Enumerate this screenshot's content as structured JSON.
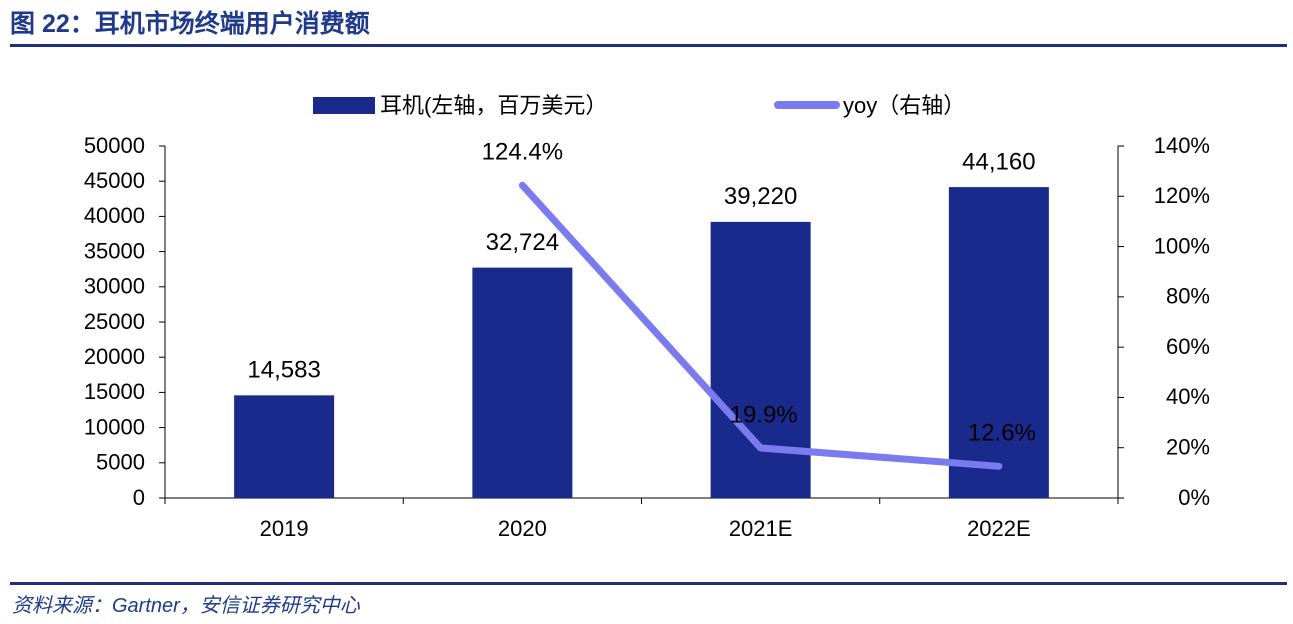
{
  "header": {
    "figure_label": "图 ",
    "figure_num": "22",
    "title": "：耳机市场终端用户消费额"
  },
  "footer": {
    "source": "资料来源：Gartner，安信证券研究中心"
  },
  "colors": {
    "bar": "#1a2a8c",
    "line": "#7b7bf0",
    "frame": "#1f2f80",
    "text": "#000000"
  },
  "chart_data": {
    "type": "bar",
    "categories": [
      "2019",
      "2020",
      "2021E",
      "2022E"
    ],
    "series": [
      {
        "name": "耳机(左轴，百万美元）",
        "kind": "bar",
        "axis": "left",
        "values": [
          14583,
          32724,
          39220,
          44160
        ],
        "labels": [
          "14,583",
          "32,724",
          "39,220",
          "44,160"
        ]
      },
      {
        "name": "yoy（右轴）",
        "kind": "line",
        "axis": "right",
        "values": [
          null,
          124.4,
          19.9,
          12.6
        ],
        "labels": [
          "",
          "124.4%",
          "19.9%",
          "12.6%"
        ]
      }
    ],
    "y_left": {
      "min": 0,
      "max": 50000,
      "ticks": [
        "0",
        "5000",
        "10000",
        "15000",
        "20000",
        "25000",
        "30000",
        "35000",
        "40000",
        "45000",
        "50000"
      ]
    },
    "y_right": {
      "min": 0,
      "max": 140,
      "ticks": [
        "0%",
        "20%",
        "40%",
        "60%",
        "80%",
        "100%",
        "120%",
        "140%"
      ]
    },
    "legend_position": "top",
    "grid": false
  }
}
